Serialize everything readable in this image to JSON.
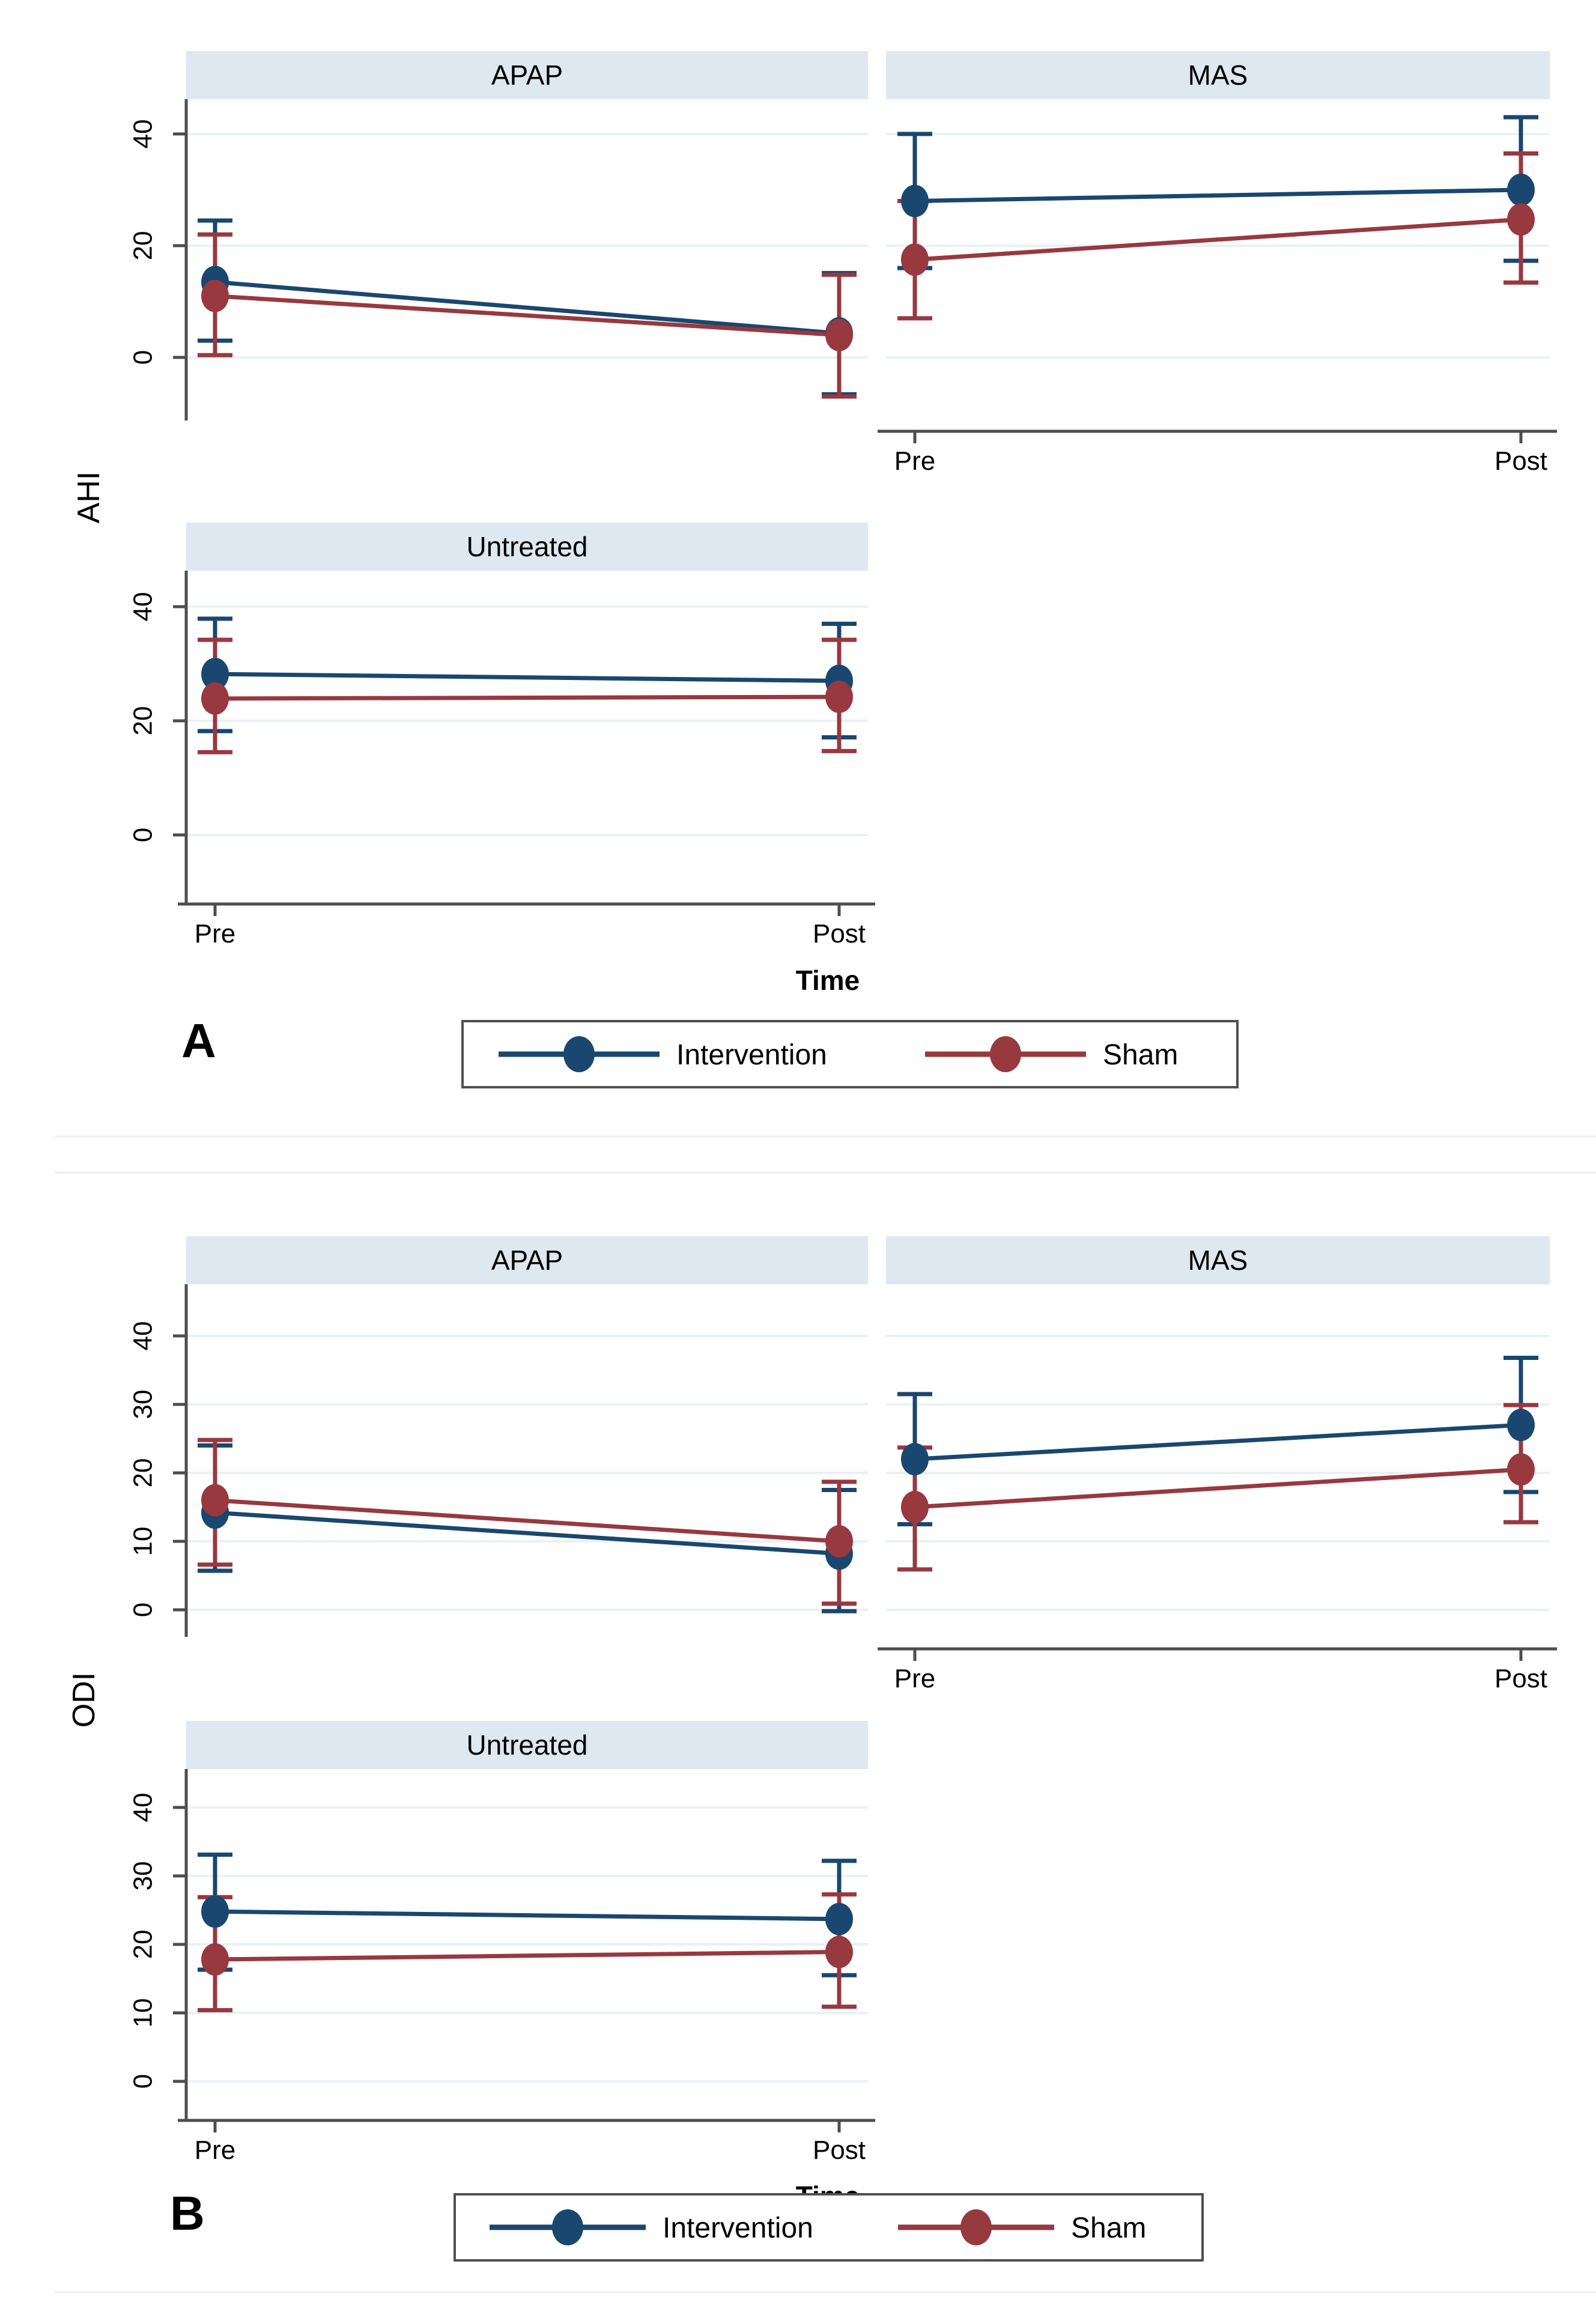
{
  "colors": {
    "navy": "#1a476f",
    "maroon": "#98383f",
    "header_fill": "#dde8f0",
    "gridline": "#e9f1f6",
    "axis": "#4d4d4d",
    "text": "#000000",
    "legend_border": "#4f4f4f",
    "separator": "#efefef",
    "background": "#ffffff"
  },
  "chart_data": [
    {
      "type": "line",
      "panel_label": "A",
      "ylabel": "AHI",
      "xlabel": "Time",
      "x_categories": [
        "Pre",
        "Post"
      ],
      "yticks": [
        0,
        20,
        40
      ],
      "ylim": [
        -13,
        46
      ],
      "grid": true,
      "legend_position": "bottom",
      "legend": [
        {
          "name": "Intervention",
          "color": "navy"
        },
        {
          "name": "Sham",
          "color": "maroon"
        }
      ],
      "facets": [
        {
          "title": "APAP",
          "series": [
            {
              "name": "Intervention",
              "color": "navy",
              "points": [
                {
                  "x": "Pre",
                  "y": 13.5,
                  "lo": 3.0,
                  "hi": 24.5
                },
                {
                  "x": "Post",
                  "y": 4.3,
                  "lo": -6.6,
                  "hi": 15.1
                }
              ]
            },
            {
              "name": "Sham",
              "color": "maroon",
              "points": [
                {
                  "x": "Pre",
                  "y": 11.0,
                  "lo": 0.4,
                  "hi": 22.0
                },
                {
                  "x": "Post",
                  "y": 4.0,
                  "lo": -7.0,
                  "hi": 14.8
                }
              ]
            }
          ]
        },
        {
          "title": "MAS",
          "series": [
            {
              "name": "Intervention",
              "color": "navy",
              "points": [
                {
                  "x": "Pre",
                  "y": 28.0,
                  "lo": 16.0,
                  "hi": 40.0
                },
                {
                  "x": "Post",
                  "y": 30.0,
                  "lo": 17.3,
                  "hi": 43.0
                }
              ]
            },
            {
              "name": "Sham",
              "color": "maroon",
              "points": [
                {
                  "x": "Pre",
                  "y": 17.5,
                  "lo": 7.0,
                  "hi": 28.0
                },
                {
                  "x": "Post",
                  "y": 24.7,
                  "lo": 13.4,
                  "hi": 36.5
                }
              ]
            }
          ]
        },
        {
          "title": "Untreated",
          "series": [
            {
              "name": "Intervention",
              "color": "navy",
              "points": [
                {
                  "x": "Pre",
                  "y": 28.2,
                  "lo": 18.2,
                  "hi": 37.9
                },
                {
                  "x": "Post",
                  "y": 27.0,
                  "lo": 17.1,
                  "hi": 37.0
                }
              ]
            },
            {
              "name": "Sham",
              "color": "maroon",
              "points": [
                {
                  "x": "Pre",
                  "y": 23.9,
                  "lo": 14.5,
                  "hi": 34.2
                },
                {
                  "x": "Post",
                  "y": 24.2,
                  "lo": 14.7,
                  "hi": 34.2
                }
              ]
            }
          ]
        }
      ]
    },
    {
      "type": "line",
      "panel_label": "B",
      "ylabel": "ODI",
      "xlabel": "Time",
      "x_categories": [
        "Pre",
        "Post"
      ],
      "yticks": [
        0,
        10,
        20,
        30,
        40
      ],
      "ylim": [
        -6,
        47
      ],
      "grid": true,
      "legend_position": "bottom",
      "legend": [
        {
          "name": "Intervention",
          "color": "navy"
        },
        {
          "name": "Sham",
          "color": "maroon"
        }
      ],
      "facets": [
        {
          "title": "APAP",
          "series": [
            {
              "name": "Intervention",
              "color": "navy",
              "points": [
                {
                  "x": "Pre",
                  "y": 14.2,
                  "lo": 5.7,
                  "hi": 24.0
                },
                {
                  "x": "Post",
                  "y": 8.2,
                  "lo": -0.2,
                  "hi": 17.5
                }
              ]
            },
            {
              "name": "Sham",
              "color": "maroon",
              "points": [
                {
                  "x": "Pre",
                  "y": 16.0,
                  "lo": 6.6,
                  "hi": 24.8
                },
                {
                  "x": "Post",
                  "y": 10.0,
                  "lo": 0.9,
                  "hi": 18.7
                }
              ]
            }
          ]
        },
        {
          "title": "MAS",
          "series": [
            {
              "name": "Intervention",
              "color": "navy",
              "points": [
                {
                  "x": "Pre",
                  "y": 22.0,
                  "lo": 12.5,
                  "hi": 31.5
                },
                {
                  "x": "Post",
                  "y": 27.0,
                  "lo": 17.2,
                  "hi": 36.8
                }
              ]
            },
            {
              "name": "Sham",
              "color": "maroon",
              "points": [
                {
                  "x": "Pre",
                  "y": 15.0,
                  "lo": 5.9,
                  "hi": 23.7
                },
                {
                  "x": "Post",
                  "y": 20.5,
                  "lo": 12.8,
                  "hi": 29.9
                }
              ]
            }
          ]
        },
        {
          "title": "Untreated",
          "series": [
            {
              "name": "Intervention",
              "color": "navy",
              "points": [
                {
                  "x": "Pre",
                  "y": 24.8,
                  "lo": 16.3,
                  "hi": 33.1
                },
                {
                  "x": "Post",
                  "y": 23.7,
                  "lo": 15.5,
                  "hi": 32.2
                }
              ]
            },
            {
              "name": "Sham",
              "color": "maroon",
              "points": [
                {
                  "x": "Pre",
                  "y": 17.8,
                  "lo": 10.4,
                  "hi": 26.9
                },
                {
                  "x": "Post",
                  "y": 18.9,
                  "lo": 10.9,
                  "hi": 27.3
                }
              ]
            }
          ]
        }
      ]
    }
  ]
}
